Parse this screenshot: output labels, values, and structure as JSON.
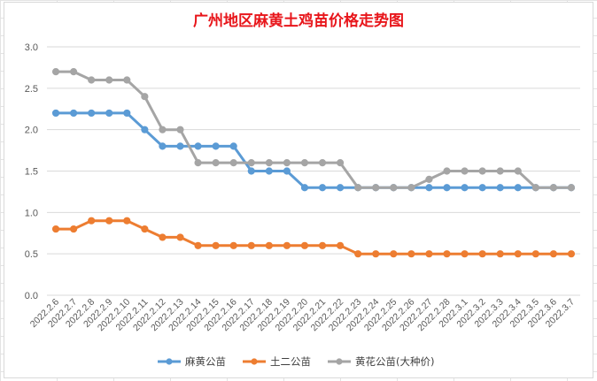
{
  "chart_data": {
    "type": "line",
    "title": "广州地区麻黄土鸡苗价格走势图",
    "xlabel": "",
    "ylabel": "",
    "ylim": [
      0,
      3.0
    ],
    "yticks": [
      "0.0",
      "0.5",
      "1.0",
      "1.5",
      "2.0",
      "2.5",
      "3.0"
    ],
    "grid": "horizontal",
    "legend_position": "bottom",
    "categories": [
      "2022.2.6",
      "2022.2.7",
      "2022.2.8",
      "2022.2.9",
      "2022.2.10",
      "2022.2.11",
      "2022.2.12",
      "2022.2.13",
      "2022.2.14",
      "2022.2.15",
      "2022.2.16",
      "2022.2.17",
      "2022.2.18",
      "2022.2.19",
      "2022.2.20",
      "2022.2.21",
      "2022.2.22",
      "2022.2.23",
      "2022.2.24",
      "2022.2.25",
      "2022.2.26",
      "2022.2.27",
      "2022.2.28",
      "2022.3.1",
      "2022.3.2",
      "2022.3.3",
      "2022.3.4",
      "2022.3.5",
      "2022.3.6",
      "2022.3.7"
    ],
    "series": [
      {
        "name": "麻黄公苗",
        "color": "#5b9bd5",
        "values": [
          2.2,
          2.2,
          2.2,
          2.2,
          2.2,
          2.0,
          1.8,
          1.8,
          1.8,
          1.8,
          1.8,
          1.5,
          1.5,
          1.5,
          1.3,
          1.3,
          1.3,
          1.3,
          1.3,
          1.3,
          1.3,
          1.3,
          1.3,
          1.3,
          1.3,
          1.3,
          1.3,
          1.3,
          1.3,
          1.3
        ]
      },
      {
        "name": "土二公苗",
        "color": "#ed7d31",
        "values": [
          0.8,
          0.8,
          0.9,
          0.9,
          0.9,
          0.8,
          0.7,
          0.7,
          0.6,
          0.6,
          0.6,
          0.6,
          0.6,
          0.6,
          0.6,
          0.6,
          0.6,
          0.5,
          0.5,
          0.5,
          0.5,
          0.5,
          0.5,
          0.5,
          0.5,
          0.5,
          0.5,
          0.5,
          0.5,
          0.5
        ]
      },
      {
        "name": "黄花公苗(大种价)",
        "color": "#a5a5a5",
        "values": [
          2.7,
          2.7,
          2.6,
          2.6,
          2.6,
          2.4,
          2.0,
          2.0,
          1.6,
          1.6,
          1.6,
          1.6,
          1.6,
          1.6,
          1.6,
          1.6,
          1.6,
          1.3,
          1.3,
          1.3,
          1.3,
          1.4,
          1.5,
          1.5,
          1.5,
          1.5,
          1.5,
          1.3,
          1.3,
          1.3
        ]
      }
    ]
  }
}
